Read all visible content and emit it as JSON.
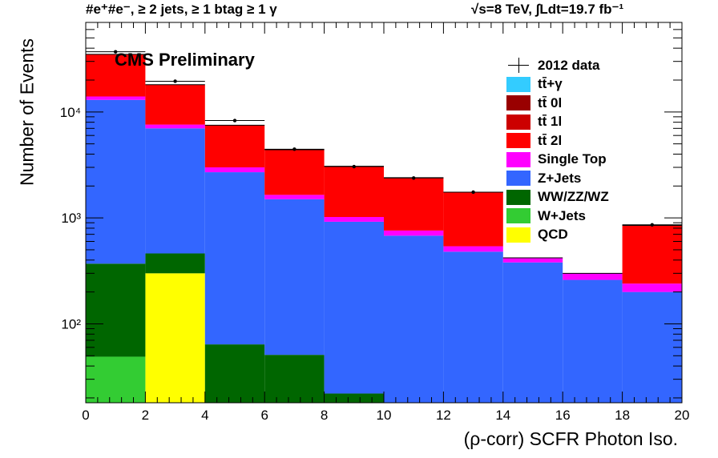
{
  "header": {
    "left": "#e⁺#e⁻, ≥ 2 jets, ≥ 1 btag ≥ 1 γ",
    "right": "√s=8 TeV,  ∫Ldt=19.7 fb⁻¹"
  },
  "cms_label": "CMS Preliminary",
  "chart_data": {
    "type": "stacked-histogram",
    "xlabel": "(ρ-corr) SCFR Photon Iso.",
    "ylabel": "Number of Events",
    "xlim": [
      0,
      20
    ],
    "ylim": [
      18,
      70000
    ],
    "log_y": true,
    "bin_edges": [
      0,
      2,
      4,
      6,
      8,
      10,
      12,
      14,
      16,
      18,
      20
    ],
    "x_ticks": [
      0,
      2,
      4,
      6,
      8,
      10,
      12,
      14,
      16,
      18,
      20
    ],
    "x_tick_labels": [
      "0",
      "2",
      "4",
      "6",
      "8",
      "10",
      "12",
      "14",
      "16",
      "18",
      "20"
    ],
    "y_ticks": [
      100,
      1000,
      10000
    ],
    "y_tick_labels": [
      "10²",
      "10³",
      "10⁴"
    ],
    "legend_position": "top-right",
    "series": [
      {
        "name": "QCD",
        "color": "#ffff00",
        "values": [
          0,
          300,
          0,
          0,
          0,
          0,
          0,
          0,
          0,
          0
        ]
      },
      {
        "name": "W+Jets",
        "color": "#33cc33",
        "values": [
          49,
          0,
          0,
          0,
          0,
          0,
          0,
          0,
          0,
          0
        ]
      },
      {
        "name": "WW/ZZ/WZ",
        "color": "#006600",
        "values": [
          321,
          162,
          64,
          51,
          22,
          0,
          0,
          0,
          0,
          0
        ]
      },
      {
        "name": "Z+Jets",
        "color": "#3366ff",
        "values": [
          12630,
          6538,
          2636,
          1449,
          898,
          680,
          480,
          380,
          260,
          200
        ]
      },
      {
        "name": "Single Top",
        "color": "#ff00ff",
        "values": [
          1000,
          600,
          300,
          150,
          100,
          80,
          60,
          40,
          40,
          40
        ]
      },
      {
        "name": "tt̄ 2l",
        "color": "#ff0000",
        "values": [
          21000,
          10500,
          4500,
          2750,
          2050,
          1640,
          1210,
          0,
          0,
          610
        ]
      },
      {
        "name": "tt̄ 1l",
        "color": "#cc0000",
        "values": [
          0,
          0,
          0,
          0,
          0,
          0,
          0,
          0,
          0,
          0
        ]
      },
      {
        "name": "tt̄ 0l",
        "color": "#990000",
        "values": [
          0,
          0,
          0,
          0,
          0,
          0,
          0,
          0,
          0,
          0
        ]
      },
      {
        "name": "tt̄+γ",
        "color": "#33ccff",
        "values": [
          0,
          0,
          0,
          0,
          0,
          0,
          0,
          0,
          0,
          0
        ]
      }
    ],
    "data": {
      "name": "2012 data",
      "x": [
        1,
        3,
        5,
        7,
        9,
        11,
        13,
        15,
        17,
        19
      ],
      "y": [
        37000,
        19500,
        8300,
        4450,
        3050,
        2380,
        1750,
        0,
        0,
        860
      ]
    },
    "legend": [
      {
        "label": "2012 data",
        "style": "data",
        "color": "#000000"
      },
      {
        "label": "tt̄+γ",
        "color": "#33ccff"
      },
      {
        "label": "tt̄ 0l",
        "color": "#990000"
      },
      {
        "label": "tt̄ 1l",
        "color": "#cc0000"
      },
      {
        "label": "tt̄ 2l",
        "color": "#ff0000"
      },
      {
        "label": "Single Top",
        "color": "#ff00ff"
      },
      {
        "label": "Z+Jets",
        "color": "#3366ff"
      },
      {
        "label": "WW/ZZ/WZ",
        "color": "#006600"
      },
      {
        "label": "W+Jets",
        "color": "#33cc33"
      },
      {
        "label": "QCD",
        "color": "#ffff00"
      }
    ]
  }
}
